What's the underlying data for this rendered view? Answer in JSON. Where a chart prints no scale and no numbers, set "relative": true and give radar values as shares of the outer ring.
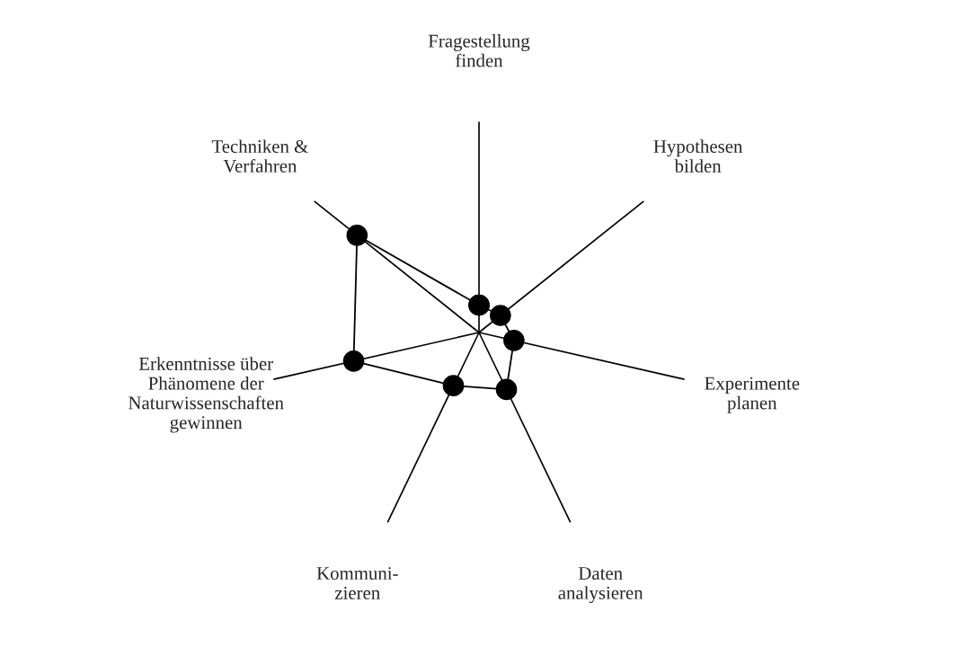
{
  "chart_data": {
    "type": "radar",
    "relative": true,
    "categories": [
      "Fragestellung\nfinden",
      "Hypothesen\nbilden",
      "Experimente\nplanen",
      "Daten\nanalysieren",
      "Kommuni-\nzieren",
      "Erkenntnisse über\nPhänomene der\nNaturwissenschaften\ngewinnen",
      "Techniken &\nVerfahren"
    ],
    "series": [
      {
        "color": "#000000",
        "values": [
          0.13,
          0.13,
          0.17,
          0.3,
          0.28,
          0.61,
          0.74
        ]
      }
    ],
    "marker": "circle",
    "line_style": "solid"
  }
}
